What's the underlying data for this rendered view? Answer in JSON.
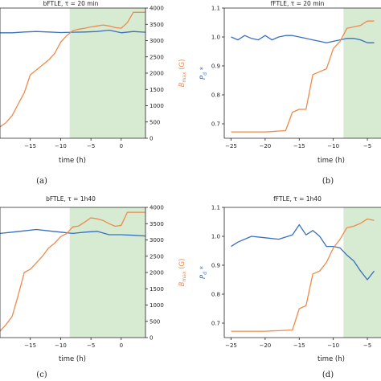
{
  "colors": {
    "blue": "#3a6fbf",
    "orange": "#ee8a4c",
    "shade": "#d6ebd2"
  },
  "chart_data": [
    {
      "id": "a",
      "type": "line",
      "title": "bFTLE, τ = 20 min",
      "xlabel": "time (h)",
      "ylabel_right": "B_max (G)",
      "caption": "(a)",
      "xlim": [
        -20,
        4
      ],
      "ylim_left": [
        0.6,
        1.1
      ],
      "ylim_right": [
        0,
        4000
      ],
      "xticks": [
        -15,
        -10,
        -5,
        0,
        5
      ],
      "yticks_right": [
        0,
        500,
        1000,
        1500,
        2000,
        2500,
        3000,
        3500,
        4000
      ],
      "shaded_x": [
        -8.5,
        4
      ],
      "series": [
        {
          "axis": "left",
          "color": "blue",
          "x": [
            -20,
            -18,
            -16,
            -14,
            -12,
            -10,
            -8,
            -6,
            -4,
            -2,
            0,
            2,
            4
          ],
          "y": [
            1.005,
            1.005,
            1.008,
            1.01,
            1.008,
            1.006,
            1.007,
            1.008,
            1.01,
            1.015,
            1.005,
            1.01,
            1.007
          ]
        },
        {
          "axis": "right",
          "color": "orange",
          "x": [
            -20,
            -19,
            -18,
            -17,
            -16,
            -15,
            -14,
            -13,
            -12,
            -11,
            -10,
            -9,
            -8,
            -7,
            -6,
            -5,
            -4,
            -3,
            -2,
            -1,
            0,
            1,
            2,
            3,
            4
          ],
          "y": [
            350,
            480,
            700,
            1050,
            1400,
            1950,
            2100,
            2250,
            2400,
            2600,
            2950,
            3150,
            3300,
            3350,
            3380,
            3420,
            3450,
            3480,
            3450,
            3400,
            3380,
            3550,
            3870,
            3870,
            3870
          ]
        }
      ]
    },
    {
      "id": "b",
      "type": "line",
      "title": "fFTLE, τ = 20 min",
      "xlabel": "time (h)",
      "ylabel_left": "P_d *",
      "caption": "(b)",
      "xlim": [
        -26,
        -3
      ],
      "ylim_left": [
        0.65,
        1.1
      ],
      "xticks": [
        -25,
        -20,
        -15,
        -10,
        -5
      ],
      "yticks_left": [
        0.7,
        0.8,
        0.9,
        1.0,
        1.1
      ],
      "shaded_x": [
        -8.5,
        -3
      ],
      "series": [
        {
          "axis": "left",
          "color": "blue",
          "x": [
            -25,
            -24,
            -23,
            -22,
            -21,
            -20,
            -19,
            -18,
            -17,
            -16,
            -15,
            -14,
            -13,
            -12,
            -11,
            -10,
            -9,
            -8,
            -7,
            -6,
            -5,
            -4
          ],
          "y": [
            1.0,
            0.99,
            1.005,
            0.995,
            0.99,
            1.005,
            0.99,
            1.0,
            1.005,
            1.005,
            1.0,
            0.995,
            0.99,
            0.985,
            0.98,
            0.985,
            0.99,
            0.995,
            0.995,
            0.99,
            0.98,
            0.98
          ]
        },
        {
          "axis": "left",
          "color": "orange",
          "x": [
            -25,
            -24,
            -23,
            -22,
            -21,
            -20,
            -19,
            -18,
            -17,
            -16,
            -15,
            -14,
            -13,
            -12,
            -11,
            -10,
            -9,
            -8,
            -7,
            -6,
            -5,
            -4
          ],
          "y": [
            0.672,
            0.672,
            0.672,
            0.672,
            0.672,
            0.672,
            0.673,
            0.675,
            0.676,
            0.74,
            0.75,
            0.75,
            0.87,
            0.88,
            0.89,
            0.96,
            0.985,
            1.03,
            1.035,
            1.04,
            1.055,
            1.055
          ]
        }
      ]
    },
    {
      "id": "c",
      "type": "line",
      "title": "bFTLE, τ = 1h40",
      "xlabel": "time (h)",
      "ylabel_right": "B_max (G)",
      "caption": "(c)",
      "xlim": [
        -20,
        4
      ],
      "ylim_left": [
        0.6,
        1.1
      ],
      "ylim_right": [
        0,
        4000
      ],
      "xticks": [
        -15,
        -10,
        -5,
        0,
        5
      ],
      "yticks_right": [
        0,
        500,
        1000,
        1500,
        2000,
        2500,
        3000,
        3500,
        4000
      ],
      "shaded_x": [
        -8.5,
        4
      ],
      "series": [
        {
          "axis": "left",
          "color": "blue",
          "x": [
            -20,
            -18,
            -16,
            -14,
            -12,
            -10,
            -8,
            -6,
            -4,
            -2,
            0,
            2,
            4
          ],
          "y": [
            1.0,
            1.005,
            1.01,
            1.015,
            1.01,
            1.005,
            1.0,
            1.005,
            1.008,
            0.995,
            0.995,
            0.993,
            0.99
          ]
        },
        {
          "axis": "right",
          "color": "orange",
          "x": [
            -20,
            -19,
            -18,
            -17,
            -16,
            -15,
            -14,
            -13,
            -12,
            -11,
            -10,
            -9,
            -8,
            -7,
            -6,
            -5,
            -4,
            -3,
            -2,
            -1,
            0,
            1,
            2,
            3,
            4
          ],
          "y": [
            200,
            400,
            650,
            1300,
            2000,
            2100,
            2300,
            2500,
            2750,
            2900,
            3100,
            3200,
            3400,
            3430,
            3550,
            3680,
            3650,
            3600,
            3500,
            3420,
            3450,
            3850,
            3850,
            3850,
            3850
          ]
        }
      ]
    },
    {
      "id": "d",
      "type": "line",
      "title": "fFTLE, τ = 1h40",
      "xlabel": "time (h)",
      "ylabel_left": "P_d *",
      "caption": "(d)",
      "xlim": [
        -26,
        -3
      ],
      "ylim_left": [
        0.65,
        1.1
      ],
      "xticks": [
        -25,
        -20,
        -15,
        -10,
        -5
      ],
      "yticks_left": [
        0.7,
        0.8,
        0.9,
        1.0,
        1.1
      ],
      "shaded_x": [
        -8.5,
        -3
      ],
      "series": [
        {
          "axis": "left",
          "color": "blue",
          "x": [
            -25,
            -24,
            -22,
            -20,
            -18,
            -16,
            -15,
            -14,
            -13,
            -12,
            -11,
            -10,
            -9,
            -8,
            -7,
            -6,
            -5,
            -4
          ],
          "y": [
            0.965,
            0.98,
            1.0,
            0.995,
            0.99,
            1.005,
            1.04,
            1.005,
            1.02,
            1.0,
            0.965,
            0.965,
            0.96,
            0.935,
            0.915,
            0.88,
            0.85,
            0.88
          ]
        },
        {
          "axis": "left",
          "color": "orange",
          "x": [
            -25,
            -24,
            -23,
            -22,
            -21,
            -20,
            -19,
            -18,
            -17,
            -16,
            -15,
            -14,
            -13,
            -12,
            -11,
            -10,
            -9,
            -8,
            -7,
            -6,
            -5,
            -4
          ],
          "y": [
            0.672,
            0.672,
            0.672,
            0.672,
            0.672,
            0.672,
            0.673,
            0.674,
            0.675,
            0.676,
            0.75,
            0.76,
            0.87,
            0.88,
            0.91,
            0.96,
            0.99,
            1.03,
            1.035,
            1.045,
            1.06,
            1.055
          ]
        }
      ]
    }
  ]
}
